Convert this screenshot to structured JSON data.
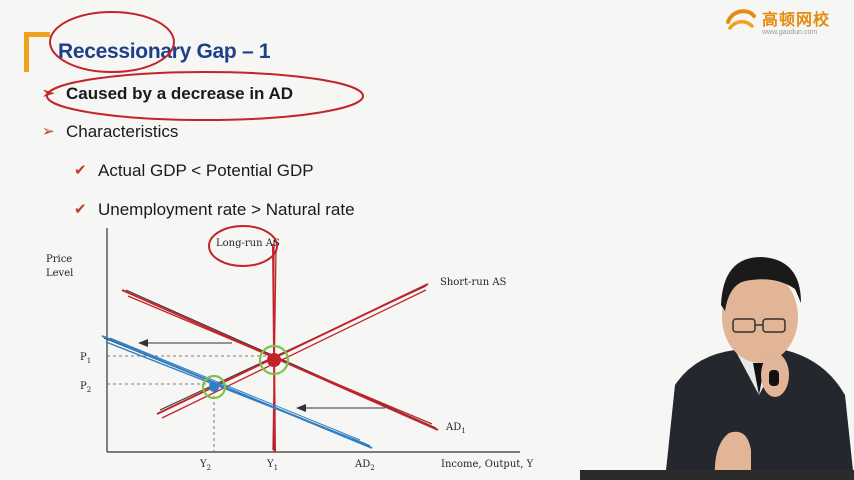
{
  "title": "Recessionary Gap – 1",
  "bullets": [
    {
      "text": "Caused by a decrease in AD",
      "level": 1,
      "marker": "➢"
    },
    {
      "text": "Characteristics",
      "level": 1,
      "marker": "➢"
    },
    {
      "text": "Actual GDP < Potential GDP",
      "level": 2,
      "marker": "✔"
    },
    {
      "text": "Unemployment rate > Natural  rate",
      "level": 2,
      "marker": "✔"
    }
  ],
  "logo": {
    "name": "高顿网校",
    "url": "www.gaodun.com"
  },
  "diagram": {
    "y_axis_label_line1": "Price",
    "y_axis_label_line2": "Level",
    "x_axis_label": "Income, Output, Y",
    "long_run_as": "Long-run AS",
    "short_run_as": "Short-run AS",
    "ad1": "AD",
    "ad1_sub": "1",
    "ad2": "AD",
    "ad2_sub": "2",
    "p1": "P",
    "p1_sub": "1",
    "p2": "P",
    "p2_sub": "2",
    "y1": "Y",
    "y1_sub": "1",
    "y2": "Y",
    "y2_sub": "2"
  },
  "colors": {
    "title": "#1f3f8a",
    "accent": "#f0a21f",
    "annotation_red": "#c4232b",
    "annotation_blue": "#2f7fc4",
    "annotation_green": "#7ec24a"
  }
}
